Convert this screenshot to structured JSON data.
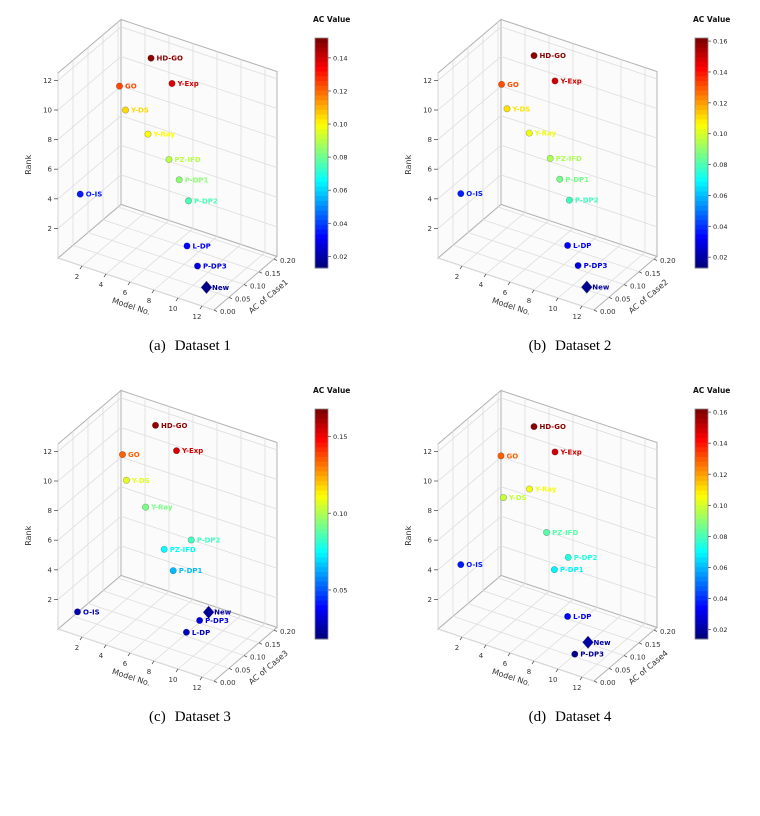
{
  "chart_data": [
    {
      "type": "scatter",
      "subtype": "scatter3d",
      "caption": {
        "tag": "(a)",
        "text": "Dataset 1"
      },
      "xlabel": "Model No.",
      "ylabel": "AC of Case1",
      "zlabel": "Rank",
      "axes": {
        "model": {
          "min": 0,
          "max": 13,
          "ticks": [
            2,
            4,
            6,
            8,
            10,
            12
          ]
        },
        "rank": {
          "min": 0,
          "max": 12.5,
          "ticks": [
            2,
            4,
            6,
            8,
            10,
            12
          ]
        },
        "ac": {
          "min": 0,
          "max": 0.21,
          "ticks": [
            0,
            0.05,
            0.1,
            0.15,
            0.2
          ],
          "tick_labels": [
            "0.00",
            "0.05",
            "0.10",
            "0.15",
            "0.20"
          ]
        }
      },
      "colorbar": {
        "title": "AC Value",
        "min": 0.013,
        "max": 0.152,
        "ticks": [
          0.02,
          0.04,
          0.06,
          0.08,
          0.1,
          0.12,
          0.14
        ]
      },
      "points": [
        {
          "label": "HD-GO",
          "model": 4,
          "rank": 12,
          "ac": 0.15,
          "marker": "circle"
        },
        {
          "label": "Y-Exp",
          "model": 6,
          "rank": 11,
          "ac": 0.14,
          "marker": "circle"
        },
        {
          "label": "GO",
          "model": 2,
          "rank": 10,
          "ac": 0.125,
          "marker": "circle"
        },
        {
          "label": "Y-DS",
          "model": 3,
          "rank": 9,
          "ac": 0.105,
          "marker": "circle"
        },
        {
          "label": "Y-Ray",
          "model": 5,
          "rank": 8,
          "ac": 0.1,
          "marker": "circle"
        },
        {
          "label": "PZ-IFD",
          "model": 7,
          "rank": 7,
          "ac": 0.09,
          "marker": "circle"
        },
        {
          "label": "P-DP1",
          "model": 8,
          "rank": 6,
          "ac": 0.084,
          "marker": "circle"
        },
        {
          "label": "P-DP2",
          "model": 9,
          "rank": 5,
          "ac": 0.075,
          "marker": "circle"
        },
        {
          "label": "O-IS",
          "model": 1,
          "rank": 4,
          "ac": 0.034,
          "marker": "circle"
        },
        {
          "label": "L-DP",
          "model": 10,
          "rank": 3,
          "ac": 0.03,
          "marker": "circle"
        },
        {
          "label": "P-DP3",
          "model": 11,
          "rank": 2,
          "ac": 0.025,
          "marker": "circle"
        },
        {
          "label": "New",
          "model": 12,
          "rank": 1,
          "ac": 0.015,
          "marker": "diamond"
        }
      ]
    },
    {
      "type": "scatter",
      "subtype": "scatter3d",
      "caption": {
        "tag": "(b)",
        "text": "Dataset 2"
      },
      "xlabel": "Model No.",
      "ylabel": "AC of Case2",
      "zlabel": "Rank",
      "axes": {
        "model": {
          "min": 0,
          "max": 13,
          "ticks": [
            2,
            4,
            6,
            8,
            10,
            12
          ]
        },
        "rank": {
          "min": 0,
          "max": 12.5,
          "ticks": [
            2,
            4,
            6,
            8,
            10,
            12
          ]
        },
        "ac": {
          "min": 0,
          "max": 0.21,
          "ticks": [
            0,
            0.05,
            0.1,
            0.15,
            0.2
          ],
          "tick_labels": [
            "0.00",
            "0.05",
            "0.10",
            "0.15",
            "0.20"
          ]
        }
      },
      "colorbar": {
        "title": "AC Value",
        "min": 0.013,
        "max": 0.162,
        "ticks": [
          0.02,
          0.04,
          0.06,
          0.08,
          0.1,
          0.12,
          0.14,
          0.16
        ]
      },
      "points": [
        {
          "label": "HD-GO",
          "model": 4,
          "rank": 12,
          "ac": 0.16,
          "marker": "circle"
        },
        {
          "label": "Y-Exp",
          "model": 6,
          "rank": 11,
          "ac": 0.15,
          "marker": "circle"
        },
        {
          "label": "GO",
          "model": 2,
          "rank": 10,
          "ac": 0.132,
          "marker": "circle"
        },
        {
          "label": "Y-DS",
          "model": 3,
          "rank": 9,
          "ac": 0.11,
          "marker": "circle"
        },
        {
          "label": "Y-Ray",
          "model": 5,
          "rank": 8,
          "ac": 0.104,
          "marker": "circle"
        },
        {
          "label": "PZ-IFD",
          "model": 7,
          "rank": 7,
          "ac": 0.094,
          "marker": "circle"
        },
        {
          "label": "P-DP1",
          "model": 8,
          "rank": 6,
          "ac": 0.086,
          "marker": "circle"
        },
        {
          "label": "P-DP2",
          "model": 9,
          "rank": 5,
          "ac": 0.078,
          "marker": "circle"
        },
        {
          "label": "O-IS",
          "model": 1,
          "rank": 4,
          "ac": 0.036,
          "marker": "circle"
        },
        {
          "label": "L-DP",
          "model": 10,
          "rank": 3,
          "ac": 0.032,
          "marker": "circle"
        },
        {
          "label": "P-DP3",
          "model": 11,
          "rank": 2,
          "ac": 0.027,
          "marker": "circle"
        },
        {
          "label": "New",
          "model": 12,
          "rank": 1,
          "ac": 0.016,
          "marker": "diamond"
        }
      ]
    },
    {
      "type": "scatter",
      "subtype": "scatter3d",
      "caption": {
        "tag": "(c)",
        "text": "Dataset 3"
      },
      "xlabel": "Model No.",
      "ylabel": "AC of Case3",
      "zlabel": "Rank",
      "axes": {
        "model": {
          "min": 0,
          "max": 13,
          "ticks": [
            2,
            4,
            6,
            8,
            10,
            12
          ]
        },
        "rank": {
          "min": 0,
          "max": 12.5,
          "ticks": [
            2,
            4,
            6,
            8,
            10,
            12
          ]
        },
        "ac": {
          "min": 0,
          "max": 0.21,
          "ticks": [
            0,
            0.05,
            0.1,
            0.15,
            0.2
          ],
          "tick_labels": [
            "0.00",
            "0.05",
            "0.10",
            "0.15",
            "0.20"
          ]
        }
      },
      "colorbar": {
        "title": "AC Value",
        "min": 0.018,
        "max": 0.168,
        "ticks": [
          0.05,
          0.1,
          0.15
        ]
      },
      "points": [
        {
          "label": "HD-GO",
          "model": 4,
          "rank": 12,
          "ac": 0.165,
          "marker": "circle"
        },
        {
          "label": "Y-Exp",
          "model": 6,
          "rank": 11,
          "ac": 0.155,
          "marker": "circle"
        },
        {
          "label": "GO",
          "model": 2,
          "rank": 10,
          "ac": 0.135,
          "marker": "circle"
        },
        {
          "label": "Y-DS",
          "model": 3,
          "rank": 9,
          "ac": 0.108,
          "marker": "circle"
        },
        {
          "label": "Y-Ray",
          "model": 5,
          "rank": 8,
          "ac": 0.092,
          "marker": "circle"
        },
        {
          "label": "P-DP2",
          "model": 9,
          "rank": 7,
          "ac": 0.084,
          "marker": "circle"
        },
        {
          "label": "PZ-IFD",
          "model": 7,
          "rank": 6,
          "ac": 0.074,
          "marker": "circle"
        },
        {
          "label": "P-DP1",
          "model": 8,
          "rank": 5,
          "ac": 0.064,
          "marker": "circle"
        },
        {
          "label": "New",
          "model": 12,
          "rank": 4,
          "ac": 0.022,
          "marker": "diamond"
        },
        {
          "label": "P-DP3",
          "model": 11,
          "rank": 3,
          "ac": 0.032,
          "marker": "circle"
        },
        {
          "label": "L-DP",
          "model": 10,
          "rank": 2,
          "ac": 0.028,
          "marker": "circle"
        },
        {
          "label": "O-IS",
          "model": 1,
          "rank": 1,
          "ac": 0.025,
          "marker": "circle"
        }
      ]
    },
    {
      "type": "scatter",
      "subtype": "scatter3d",
      "caption": {
        "tag": "(d)",
        "text": "Dataset 4"
      },
      "xlabel": "Model No.",
      "ylabel": "AC of Case4",
      "zlabel": "Rank",
      "axes": {
        "model": {
          "min": 0,
          "max": 13,
          "ticks": [
            2,
            4,
            6,
            8,
            10,
            12
          ]
        },
        "rank": {
          "min": 0,
          "max": 12.5,
          "ticks": [
            2,
            4,
            6,
            8,
            10,
            12
          ]
        },
        "ac": {
          "min": 0,
          "max": 0.21,
          "ticks": [
            0,
            0.05,
            0.1,
            0.15,
            0.2
          ],
          "tick_labels": [
            "0.00",
            "0.05",
            "0.10",
            "0.15",
            "0.20"
          ]
        }
      },
      "colorbar": {
        "title": "AC Value",
        "min": 0.014,
        "max": 0.162,
        "ticks": [
          0.02,
          0.04,
          0.06,
          0.08,
          0.1,
          0.12,
          0.14,
          0.16
        ]
      },
      "points": [
        {
          "label": "HD-GO",
          "model": 4,
          "rank": 12,
          "ac": 0.16,
          "marker": "circle"
        },
        {
          "label": "Y-Exp",
          "model": 6,
          "rank": 11,
          "ac": 0.15,
          "marker": "circle"
        },
        {
          "label": "GO",
          "model": 2,
          "rank": 10,
          "ac": 0.13,
          "marker": "circle"
        },
        {
          "label": "Y-Ray",
          "model": 5,
          "rank": 9,
          "ac": 0.105,
          "marker": "circle"
        },
        {
          "label": "Y-DS",
          "model": 3,
          "rank": 8,
          "ac": 0.098,
          "marker": "circle"
        },
        {
          "label": "PZ-IFD",
          "model": 7,
          "rank": 7,
          "ac": 0.082,
          "marker": "circle"
        },
        {
          "label": "P-DP2",
          "model": 9,
          "rank": 6,
          "ac": 0.074,
          "marker": "circle"
        },
        {
          "label": "P-DP1",
          "model": 8,
          "rank": 5,
          "ac": 0.068,
          "marker": "circle"
        },
        {
          "label": "O-IS",
          "model": 1,
          "rank": 4,
          "ac": 0.036,
          "marker": "circle"
        },
        {
          "label": "L-DP",
          "model": 10,
          "rank": 3,
          "ac": 0.032,
          "marker": "circle"
        },
        {
          "label": "New",
          "model": 12,
          "rank": 2,
          "ac": 0.02,
          "marker": "diamond"
        },
        {
          "label": "P-DP3",
          "model": 11,
          "rank": 1,
          "ac": 0.016,
          "marker": "diamond-small-circle"
        }
      ]
    }
  ]
}
